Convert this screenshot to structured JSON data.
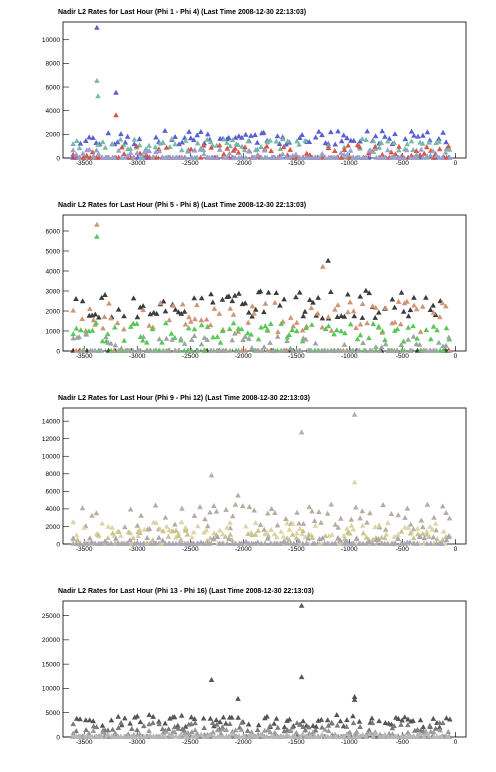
{
  "chart_data": [
    {
      "type": "scatter",
      "title": "Nadir L2 Rates for Last Hour (Phi 1 - Phi 4) (Last Time 2008-12-30 22:13:03)",
      "xlabel": "",
      "ylabel": "",
      "xlim": [
        -3700,
        100
      ],
      "ylim": [
        0,
        11500
      ],
      "xticks": [
        -3500,
        -3000,
        -2500,
        -2000,
        -1500,
        -1000,
        -500,
        0
      ],
      "xtick_labels": [
        "-3500",
        "-3000",
        "-2500",
        "-2000",
        "-1500",
        "-1000",
        "-500",
        "0"
      ],
      "yticks": [
        0,
        2000,
        4000,
        6000,
        8000,
        10000
      ],
      "ytick_labels": [
        "0",
        "2000",
        "4000",
        "6000",
        "8000",
        "10000"
      ],
      "grid": false,
      "marker": "triangle",
      "series": [
        {
          "color": "#5a5fd2",
          "base": 1700,
          "amp": 600,
          "zero_frac": 0.3,
          "seed": 11,
          "spikes": [
            [
              -3380,
              11000
            ],
            [
              -3200,
              5500
            ]
          ]
        },
        {
          "color": "#76b9a8",
          "base": 1100,
          "amp": 500,
          "zero_frac": 0.35,
          "seed": 23,
          "spikes": [
            [
              -3380,
              6500
            ],
            [
              -3370,
              5200
            ]
          ]
        },
        {
          "color": "#d6564a",
          "base": 600,
          "amp": 500,
          "zero_frac": 0.45,
          "seed": 37,
          "spikes": [
            [
              -3200,
              3600
            ]
          ]
        },
        {
          "color": "#9aa0d0",
          "base": 400,
          "amp": 300,
          "zero_frac": 0.6,
          "seed": 41,
          "spikes": []
        }
      ]
    },
    {
      "type": "scatter",
      "title": "Nadir L2 Rates for Last Hour (Phi 5 - Phi 8) (Last Time 2008-12-30 22:13:03)",
      "xlabel": "",
      "ylabel": "",
      "xlim": [
        -3700,
        100
      ],
      "ylim": [
        0,
        6800
      ],
      "xticks": [
        -3500,
        -3000,
        -2500,
        -2000,
        -1500,
        -1000,
        -500,
        0
      ],
      "xtick_labels": [
        "-3500",
        "-3000",
        "-2500",
        "-2000",
        "-1500",
        "-1000",
        "-500",
        "0"
      ],
      "yticks": [
        0,
        1000,
        2000,
        3000,
        4000,
        5000,
        6000
      ],
      "ytick_labels": [
        "0",
        "1000",
        "2000",
        "3000",
        "4000",
        "5000",
        "6000"
      ],
      "grid": false,
      "marker": "triangle",
      "series": [
        {
          "color": "#3c3c3c",
          "base": 2300,
          "amp": 700,
          "zero_frac": 0.3,
          "seed": 53,
          "spikes": [
            [
              -1200,
              4500
            ]
          ]
        },
        {
          "color": "#cf9476",
          "base": 1700,
          "amp": 800,
          "zero_frac": 0.3,
          "seed": 67,
          "spikes": [
            [
              -3380,
              6300
            ],
            [
              -1250,
              4200
            ]
          ]
        },
        {
          "color": "#57c857",
          "base": 900,
          "amp": 500,
          "zero_frac": 0.35,
          "seed": 71,
          "spikes": [
            [
              -3380,
              5700
            ]
          ]
        },
        {
          "color": "#9aa7a0",
          "base": 500,
          "amp": 400,
          "zero_frac": 0.6,
          "seed": 83,
          "spikes": []
        }
      ]
    },
    {
      "type": "scatter",
      "title": "Nadir L2 Rates for Last Hour (Phi 9 - Phi 12) (Last Time 2008-12-30 22:13:03)",
      "xlabel": "",
      "ylabel": "",
      "xlim": [
        -3700,
        100
      ],
      "ylim": [
        0,
        15500
      ],
      "xticks": [
        -3500,
        -3000,
        -2500,
        -2000,
        -1500,
        -1000,
        -500,
        0
      ],
      "xtick_labels": [
        "-3500",
        "-3000",
        "-2500",
        "-2000",
        "-1500",
        "-1000",
        "-500",
        "0"
      ],
      "yticks": [
        0,
        2000,
        4000,
        6000,
        8000,
        10000,
        12000,
        14000
      ],
      "ytick_labels": [
        "0",
        "2000",
        "4000",
        "6000",
        "8000",
        "10000",
        "12000",
        "14000"
      ],
      "grid": false,
      "marker": "triangle",
      "series": [
        {
          "color": "#b5aca2",
          "base": 3000,
          "amp": 1500,
          "zero_frac": 0.3,
          "seed": 97,
          "spikes": [
            [
              -2300,
              7800
            ],
            [
              -2050,
              5500
            ],
            [
              -1450,
              12700
            ],
            [
              -950,
              14700
            ]
          ]
        },
        {
          "color": "#ddd4a6",
          "base": 1600,
          "amp": 900,
          "zero_frac": 0.35,
          "seed": 101,
          "spikes": [
            [
              -950,
              7000
            ]
          ]
        },
        {
          "color": "#c9c48e",
          "base": 900,
          "amp": 600,
          "zero_frac": 0.45,
          "seed": 113,
          "spikes": []
        },
        {
          "color": "#a9a4b8",
          "base": 400,
          "amp": 400,
          "zero_frac": 0.6,
          "seed": 127,
          "spikes": []
        }
      ]
    },
    {
      "type": "scatter",
      "title": "Nadir L2 Rates for Last Hour (Phi 13 - Phi 16) (Last Time 2008-12-30 22:13:03)",
      "xlabel": "",
      "ylabel": "",
      "xlim": [
        -3700,
        100
      ],
      "ylim": [
        0,
        28000
      ],
      "xticks": [
        -3500,
        -3000,
        -2500,
        -2000,
        -1500,
        -1000,
        -500,
        0
      ],
      "xtick_labels": [
        "-3500",
        "-3000",
        "-2500",
        "-2000",
        "-1500",
        "-1000",
        "-500",
        "0"
      ],
      "yticks": [
        0,
        5000,
        10000,
        15000,
        20000,
        25000
      ],
      "ytick_labels": [
        "0",
        "5000",
        "10000",
        "15000",
        "20000",
        "25000"
      ],
      "grid": false,
      "marker": "triangle",
      "series": [
        {
          "color": "#555555",
          "base": 3200,
          "amp": 1300,
          "zero_frac": 0.3,
          "seed": 131,
          "spikes": [
            [
              -1450,
              27000
            ],
            [
              -1450,
              12300
            ],
            [
              -2300,
              11700
            ],
            [
              -2050,
              7800
            ],
            [
              -950,
              8200
            ],
            [
              -950,
              7600
            ]
          ]
        },
        {
          "color": "#7a7a7a",
          "base": 2000,
          "amp": 900,
          "zero_frac": 0.35,
          "seed": 149,
          "spikes": []
        },
        {
          "color": "#9b9b9b",
          "base": 900,
          "amp": 600,
          "zero_frac": 0.45,
          "seed": 157,
          "spikes": []
        },
        {
          "color": "#b8b8b8",
          "base": 300,
          "amp": 300,
          "zero_frac": 0.65,
          "seed": 163,
          "spikes": []
        }
      ]
    }
  ]
}
